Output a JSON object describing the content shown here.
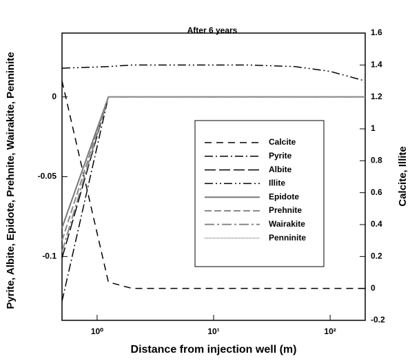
{
  "chart_data": {
    "type": "line",
    "title": "After 6 years",
    "xlabel": "Distance from injection well (m)",
    "ylabel": "Pyrite, Albite, Epidote, Prehnite, Wairakite, Penninite",
    "y2label": "Calcite, Illite",
    "xscale": "log",
    "xlim": [
      0.5,
      200
    ],
    "xticks": [
      {
        "value": 1,
        "label": "10⁰"
      },
      {
        "value": 10,
        "label": "10¹"
      },
      {
        "value": 100,
        "label": "10²"
      }
    ],
    "ylim": [
      -0.14,
      0.04
    ],
    "yticks": [
      0,
      -0.05,
      -0.1
    ],
    "y2lim": [
      -0.2,
      1.6
    ],
    "y2ticks": [
      -0.2,
      0,
      0.2,
      0.4,
      0.6,
      0.8,
      1,
      1.2,
      1.4,
      1.6
    ],
    "x": [
      0.5,
      1.25,
      2,
      5,
      10,
      20,
      50,
      100,
      200
    ],
    "series": [
      {
        "name": "Calcite",
        "color": "#000000",
        "axis": "y2",
        "values": [
          1.3,
          0.04,
          0,
          0,
          0,
          0,
          0,
          0,
          0
        ]
      },
      {
        "name": "Pyrite",
        "color": "#000000",
        "values": [
          -0.128,
          0,
          0,
          0,
          0,
          0,
          0,
          0,
          0
        ]
      },
      {
        "name": "Albite",
        "color": "#000000",
        "values": [
          -0.101,
          0,
          0,
          0,
          0,
          0,
          0,
          0,
          0
        ]
      },
      {
        "name": "Illite",
        "color": "#000000",
        "axis": "y2",
        "values": [
          1.38,
          1.39,
          1.4,
          1.4,
          1.4,
          1.4,
          1.39,
          1.36,
          1.3
        ]
      },
      {
        "name": "Epidote",
        "color": "#777777",
        "values": [
          -0.082,
          0,
          0,
          0,
          0,
          0,
          0,
          0,
          0
        ]
      },
      {
        "name": "Prehnite",
        "color": "#888888",
        "values": [
          -0.09,
          0,
          0,
          0,
          0,
          0,
          0,
          0,
          0
        ]
      },
      {
        "name": "Wairakite",
        "color": "#888888",
        "values": [
          -0.097,
          0,
          0,
          0,
          0,
          0,
          0,
          0,
          0
        ]
      },
      {
        "name": "Penninite",
        "color": "#999999",
        "values": [
          null,
          0,
          0,
          0,
          0,
          0,
          0,
          0,
          0
        ]
      }
    ]
  }
}
